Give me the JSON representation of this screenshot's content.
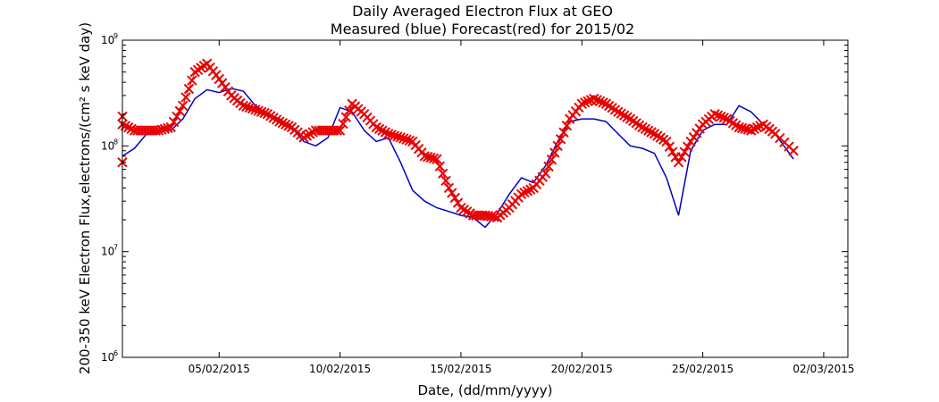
{
  "chart_data": {
    "type": "line",
    "title_line1": "Daily Averaged Electron Flux at GEO",
    "title_line2": "Measured (blue) Forecast(red) for 2015/02",
    "xlabel": "Date, (dd/mm/yyyy)",
    "ylabel": "200-350 keV Electron Flux,electrons/(cm² s keV day)",
    "y_scale": "log",
    "ylim": [
      1000000,
      1000000000
    ],
    "xlim": [
      "01/02/2015",
      "03/03/2015"
    ],
    "x_ticks": [
      "05/02/2015",
      "10/02/2015",
      "15/02/2015",
      "20/02/2015",
      "25/02/2015",
      "02/03/2015"
    ],
    "y_ticks": [
      {
        "base": "10",
        "exp": "6",
        "value": 1000000
      },
      {
        "base": "10",
        "exp": "7",
        "value": 10000000
      },
      {
        "base": "10",
        "exp": "8",
        "value": 100000000
      },
      {
        "base": "10",
        "exp": "9",
        "value": 1000000000
      }
    ],
    "grid": false,
    "series": [
      {
        "color": "#0000c8",
        "marker": "none",
        "x": [
          "01/02/2015 00:00",
          "01/02/2015 12:00",
          "02/02/2015 00:00",
          "02/02/2015 12:00",
          "03/02/2015 00:00",
          "03/02/2015 12:00",
          "04/02/2015 00:00",
          "04/02/2015 12:00",
          "05/02/2015 00:00",
          "05/02/2015 12:00",
          "06/02/2015 00:00",
          "06/02/2015 12:00",
          "07/02/2015 00:00",
          "07/02/2015 12:00",
          "08/02/2015 00:00",
          "08/02/2015 12:00",
          "09/02/2015 00:00",
          "09/02/2015 12:00",
          "10/02/2015 00:00",
          "10/02/2015 12:00",
          "11/02/2015 00:00",
          "11/02/2015 12:00",
          "12/02/2015 00:00",
          "12/02/2015 12:00",
          "13/02/2015 00:00",
          "13/02/2015 12:00",
          "14/02/2015 00:00",
          "14/02/2015 12:00",
          "15/02/2015 00:00",
          "15/02/2015 12:00",
          "16/02/2015 00:00",
          "16/02/2015 12:00",
          "17/02/2015 00:00",
          "17/02/2015 12:00",
          "18/02/2015 00:00",
          "18/02/2015 12:00",
          "19/02/2015 00:00",
          "19/02/2015 12:00",
          "20/02/2015 00:00",
          "20/02/2015 12:00",
          "21/02/2015 00:00",
          "21/02/2015 12:00",
          "22/02/2015 00:00",
          "22/02/2015 12:00",
          "23/02/2015 00:00",
          "23/02/2015 12:00",
          "24/02/2015 00:00",
          "24/02/2015 12:00",
          "25/02/2015 00:00",
          "25/02/2015 12:00",
          "26/02/2015 00:00",
          "26/02/2015 12:00",
          "27/02/2015 00:00",
          "27/02/2015 12:00",
          "28/02/2015 00:00",
          "28/02/2015 18:00"
        ],
        "y": [
          80000000.0,
          95000000.0,
          130000000.0,
          140000000.0,
          140000000.0,
          180000000.0,
          280000000.0,
          340000000.0,
          320000000.0,
          350000000.0,
          330000000.0,
          240000000.0,
          200000000.0,
          180000000.0,
          150000000.0,
          110000000.0,
          100000000.0,
          120000000.0,
          230000000.0,
          210000000.0,
          140000000.0,
          110000000.0,
          120000000.0,
          70000000.0,
          38000000.0,
          30000000.0,
          26000000.0,
          24000000.0,
          22000000.0,
          21000000.0,
          17000000.0,
          23000000.0,
          35000000.0,
          50000000.0,
          45000000.0,
          65000000.0,
          110000000.0,
          170000000.0,
          180000000.0,
          180000000.0,
          170000000.0,
          130000000.0,
          100000000.0,
          95000000.0,
          85000000.0,
          50000000.0,
          22000000.0,
          90000000.0,
          140000000.0,
          160000000.0,
          160000000.0,
          240000000.0,
          210000000.0,
          160000000.0,
          130000000.0,
          75000000.0
        ]
      },
      {
        "color": "#e80000",
        "marker": "x",
        "x": [
          "01/02/2015 00:00",
          "01/02/2015 12:00",
          "02/02/2015 00:00",
          "02/02/2015 12:00",
          "03/02/2015 00:00",
          "03/02/2015 12:00",
          "04/02/2015 00:00",
          "04/02/2015 12:00",
          "05/02/2015 00:00",
          "05/02/2015 12:00",
          "06/02/2015 00:00",
          "06/02/2015 12:00",
          "07/02/2015 00:00",
          "07/02/2015 12:00",
          "08/02/2015 00:00",
          "08/02/2015 12:00",
          "09/02/2015 00:00",
          "09/02/2015 12:00",
          "10/02/2015 00:00",
          "10/02/2015 12:00",
          "11/02/2015 00:00",
          "11/02/2015 12:00",
          "12/02/2015 00:00",
          "12/02/2015 12:00",
          "13/02/2015 00:00",
          "13/02/2015 12:00",
          "14/02/2015 00:00",
          "14/02/2015 12:00",
          "15/02/2015 00:00",
          "15/02/2015 12:00",
          "16/02/2015 00:00",
          "16/02/2015 12:00",
          "17/02/2015 00:00",
          "17/02/2015 12:00",
          "18/02/2015 00:00",
          "18/02/2015 12:00",
          "19/02/2015 00:00",
          "19/02/2015 12:00",
          "20/02/2015 00:00",
          "20/02/2015 12:00",
          "21/02/2015 00:00",
          "21/02/2015 12:00",
          "22/02/2015 00:00",
          "22/02/2015 12:00",
          "23/02/2015 00:00",
          "23/02/2015 12:00",
          "24/02/2015 00:00",
          "24/02/2015 12:00",
          "25/02/2015 00:00",
          "25/02/2015 12:00",
          "26/02/2015 00:00",
          "26/02/2015 12:00",
          "27/02/2015 00:00",
          "27/02/2015 12:00",
          "28/02/2015 00:00",
          "28/02/2015 18:00"
        ],
        "y": [
          160000000.0,
          140000000.0,
          140000000.0,
          140000000.0,
          150000000.0,
          240000000.0,
          500000000.0,
          600000000.0,
          430000000.0,
          300000000.0,
          240000000.0,
          220000000.0,
          200000000.0,
          170000000.0,
          150000000.0,
          120000000.0,
          140000000.0,
          140000000.0,
          140000000.0,
          250000000.0,
          200000000.0,
          150000000.0,
          130000000.0,
          120000000.0,
          110000000.0,
          80000000.0,
          75000000.0,
          40000000.0,
          26000000.0,
          22000000.0,
          22000000.0,
          21000000.0,
          26000000.0,
          35000000.0,
          40000000.0,
          55000000.0,
          100000000.0,
          180000000.0,
          250000000.0,
          280000000.0,
          250000000.0,
          210000000.0,
          180000000.0,
          150000000.0,
          130000000.0,
          110000000.0,
          70000000.0,
          110000000.0,
          160000000.0,
          200000000.0,
          180000000.0,
          150000000.0,
          140000000.0,
          160000000.0,
          130000000.0,
          90000000.0
        ]
      }
    ],
    "extra_markers": [
      {
        "x": "01/02/2015 00:00",
        "y": 190000000.0
      },
      {
        "x": "01/02/2015 00:00",
        "y": 70000000.0
      }
    ]
  }
}
